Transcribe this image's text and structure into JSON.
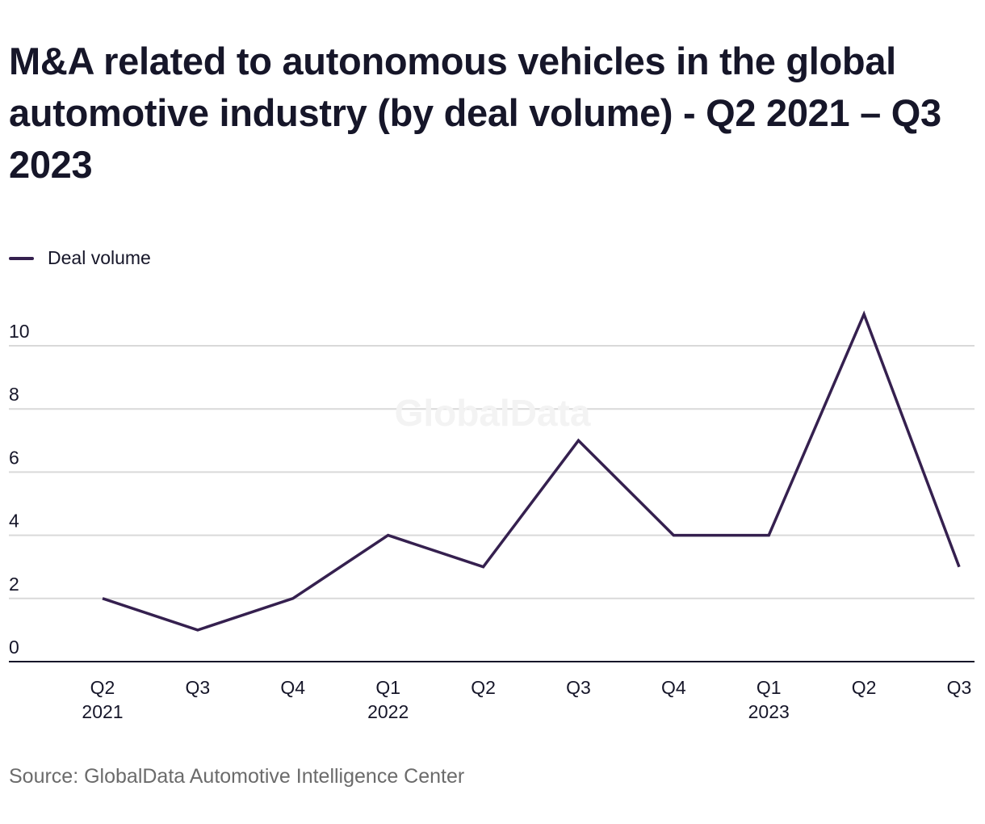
{
  "chart_data": {
    "type": "line",
    "title": "M&A related to autonomous vehicles in the global automotive industry (by deal volume) - Q2 2021 – Q3 2023",
    "xlabel": "",
    "ylabel": "",
    "categories": [
      {
        "quarter": "Q2",
        "year": "2021"
      },
      {
        "quarter": "Q3",
        "year": ""
      },
      {
        "quarter": "Q4",
        "year": ""
      },
      {
        "quarter": "Q1",
        "year": "2022"
      },
      {
        "quarter": "Q2",
        "year": ""
      },
      {
        "quarter": "Q3",
        "year": ""
      },
      {
        "quarter": "Q4",
        "year": ""
      },
      {
        "quarter": "Q1",
        "year": "2023"
      },
      {
        "quarter": "Q2",
        "year": ""
      },
      {
        "quarter": "Q3",
        "year": ""
      }
    ],
    "series": [
      {
        "name": "Deal volume",
        "color": "#35204f",
        "values": [
          2,
          1,
          2,
          4,
          3,
          7,
          4,
          4,
          11,
          3
        ]
      }
    ],
    "yticks": [
      0,
      2,
      4,
      6,
      8,
      10
    ],
    "ylim": [
      0,
      11
    ],
    "grid": true,
    "legend_position": "top-left",
    "watermark": "GlobalData",
    "source": "Source: GlobalData Automotive Intelligence Center"
  }
}
